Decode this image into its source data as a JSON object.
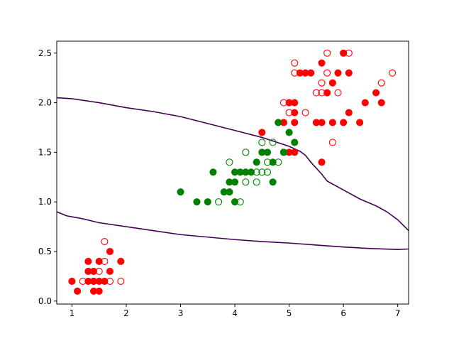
{
  "chart_data": {
    "type": "scatter",
    "title": "",
    "xlabel": "",
    "ylabel": "",
    "xlim": [
      0.72,
      7.2
    ],
    "ylim": [
      -0.03,
      2.62
    ],
    "grid": false,
    "x_ticks": [
      1,
      2,
      3,
      4,
      5,
      6,
      7
    ],
    "x_tick_labels": [
      "1",
      "2",
      "3",
      "4",
      "5",
      "6",
      "7"
    ],
    "y_ticks": [
      0.0,
      0.5,
      1.0,
      1.5,
      2.0,
      2.5
    ],
    "y_tick_labels": [
      "0.0",
      "0.5",
      "1.0",
      "1.5",
      "2.0",
      "2.5"
    ],
    "colors": {
      "red": "#ff0000",
      "green": "#008000",
      "boundary": "#440154",
      "axes": "#000000"
    },
    "series": [
      {
        "color": "#ff0000",
        "filled": true,
        "points": [
          [
            1.0,
            0.2
          ],
          [
            1.1,
            0.1
          ],
          [
            1.3,
            0.4
          ],
          [
            1.3,
            0.3
          ],
          [
            1.3,
            0.2
          ],
          [
            1.4,
            0.3
          ],
          [
            1.4,
            0.2
          ],
          [
            1.4,
            0.1
          ],
          [
            1.5,
            0.4
          ],
          [
            1.5,
            0.2
          ],
          [
            1.5,
            0.1
          ],
          [
            1.6,
            0.2
          ],
          [
            1.7,
            0.5
          ],
          [
            1.7,
            0.3
          ],
          [
            1.9,
            0.4
          ],
          [
            4.5,
            1.7
          ],
          [
            4.8,
            1.8
          ],
          [
            4.9,
            1.8
          ],
          [
            5.0,
            2.0
          ],
          [
            5.0,
            1.5
          ],
          [
            5.1,
            2.0
          ],
          [
            5.1,
            1.9
          ],
          [
            5.1,
            1.8
          ],
          [
            5.1,
            1.5
          ],
          [
            5.2,
            2.3
          ],
          [
            5.3,
            2.3
          ],
          [
            5.4,
            2.3
          ],
          [
            5.5,
            1.8
          ],
          [
            5.6,
            2.4
          ],
          [
            5.6,
            1.8
          ],
          [
            5.6,
            1.4
          ],
          [
            5.7,
            2.1
          ],
          [
            5.8,
            2.2
          ],
          [
            5.8,
            1.8
          ],
          [
            5.9,
            2.3
          ],
          [
            6.0,
            2.5
          ],
          [
            6.0,
            1.8
          ],
          [
            6.1,
            2.3
          ],
          [
            6.1,
            1.9
          ],
          [
            6.3,
            1.8
          ],
          [
            6.4,
            2.0
          ],
          [
            6.6,
            2.1
          ],
          [
            6.7,
            2.0
          ]
        ]
      },
      {
        "color": "#ff0000",
        "filled": false,
        "points": [
          [
            1.2,
            0.2
          ],
          [
            1.4,
            0.2
          ],
          [
            1.5,
            0.3
          ],
          [
            1.6,
            0.6
          ],
          [
            1.6,
            0.4
          ],
          [
            1.7,
            0.2
          ],
          [
            1.9,
            0.2
          ],
          [
            4.9,
            2.0
          ],
          [
            5.0,
            1.9
          ],
          [
            5.1,
            2.4
          ],
          [
            5.1,
            2.3
          ],
          [
            5.3,
            1.9
          ],
          [
            5.5,
            2.1
          ],
          [
            5.6,
            2.2
          ],
          [
            5.6,
            2.1
          ],
          [
            5.7,
            2.5
          ],
          [
            5.7,
            2.3
          ],
          [
            5.8,
            1.6
          ],
          [
            5.9,
            2.1
          ],
          [
            6.1,
            2.5
          ],
          [
            6.7,
            2.2
          ],
          [
            6.9,
            2.3
          ]
        ]
      },
      {
        "color": "#008000",
        "filled": true,
        "points": [
          [
            3.0,
            1.1
          ],
          [
            3.3,
            1.0
          ],
          [
            3.5,
            1.0
          ],
          [
            3.6,
            1.3
          ],
          [
            3.8,
            1.1
          ],
          [
            3.9,
            1.1
          ],
          [
            3.9,
            1.2
          ],
          [
            4.0,
            1.3
          ],
          [
            4.0,
            1.2
          ],
          [
            4.0,
            1.0
          ],
          [
            4.1,
            1.3
          ],
          [
            4.2,
            1.3
          ],
          [
            4.3,
            1.3
          ],
          [
            4.4,
            1.4
          ],
          [
            4.5,
            1.5
          ],
          [
            4.6,
            1.5
          ],
          [
            4.7,
            1.4
          ],
          [
            4.7,
            1.2
          ],
          [
            4.8,
            1.8
          ],
          [
            4.9,
            1.5
          ],
          [
            5.0,
            1.7
          ],
          [
            5.1,
            1.6
          ]
        ]
      },
      {
        "color": "#008000",
        "filled": false,
        "points": [
          [
            3.7,
            1.0
          ],
          [
            3.9,
            1.4
          ],
          [
            4.1,
            1.0
          ],
          [
            4.2,
            1.5
          ],
          [
            4.2,
            1.2
          ],
          [
            4.4,
            1.3
          ],
          [
            4.4,
            1.2
          ],
          [
            4.5,
            1.6
          ],
          [
            4.5,
            1.3
          ],
          [
            4.6,
            1.4
          ],
          [
            4.6,
            1.3
          ],
          [
            4.7,
            1.6
          ],
          [
            4.8,
            1.4
          ],
          [
            4.9,
            1.5
          ]
        ]
      }
    ],
    "boundaries": [
      {
        "color": "#440154",
        "points": [
          [
            0.72,
            2.05
          ],
          [
            1.0,
            2.04
          ],
          [
            1.5,
            2.0
          ],
          [
            2.0,
            1.95
          ],
          [
            2.5,
            1.91
          ],
          [
            3.0,
            1.86
          ],
          [
            3.5,
            1.79
          ],
          [
            4.0,
            1.72
          ],
          [
            4.5,
            1.65
          ],
          [
            5.0,
            1.56
          ],
          [
            5.2,
            1.51
          ],
          [
            5.3,
            1.47
          ],
          [
            5.4,
            1.4
          ],
          [
            5.6,
            1.28
          ],
          [
            5.7,
            1.21
          ],
          [
            6.0,
            1.12
          ],
          [
            6.3,
            1.03
          ],
          [
            6.6,
            0.96
          ],
          [
            6.8,
            0.9
          ],
          [
            7.0,
            0.82
          ],
          [
            7.2,
            0.71
          ]
        ]
      },
      {
        "color": "#440154",
        "points": [
          [
            0.72,
            0.9
          ],
          [
            0.9,
            0.86
          ],
          [
            1.2,
            0.83
          ],
          [
            1.5,
            0.79
          ],
          [
            2.0,
            0.75
          ],
          [
            2.5,
            0.71
          ],
          [
            3.0,
            0.67
          ],
          [
            3.5,
            0.645
          ],
          [
            4.0,
            0.62
          ],
          [
            4.5,
            0.6
          ],
          [
            5.0,
            0.585
          ],
          [
            5.5,
            0.565
          ],
          [
            6.0,
            0.545
          ],
          [
            6.5,
            0.53
          ],
          [
            7.0,
            0.52
          ],
          [
            7.2,
            0.525
          ]
        ]
      }
    ]
  }
}
